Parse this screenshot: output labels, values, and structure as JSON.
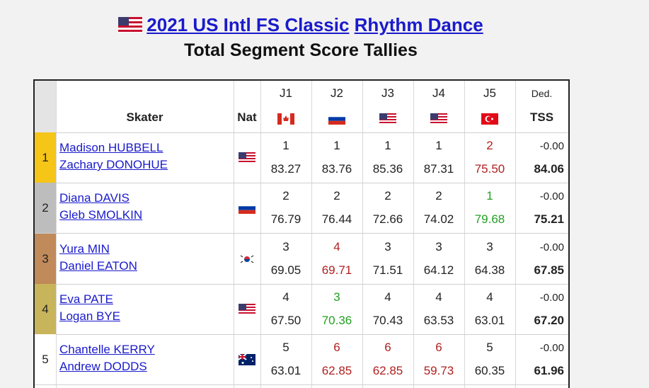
{
  "header": {
    "event": "2021 US Intl FS Classic",
    "segment": "Rhythm Dance",
    "subtitle": "Total Segment Score Tallies"
  },
  "table": {
    "columns": {
      "skater": "Skater",
      "nat": "Nat",
      "judges": [
        "J1",
        "J2",
        "J3",
        "J4",
        "J5"
      ],
      "ded": "Ded.",
      "tss": "TSS"
    },
    "rows": [
      {
        "rank": 1,
        "skaters": [
          "Madison HUBBELL",
          "Zachary DONOHUE"
        ],
        "judges": [
          {
            "rank": 1,
            "score": "83.27"
          },
          {
            "rank": 1,
            "score": "83.76"
          },
          {
            "rank": 1,
            "score": "85.36"
          },
          {
            "rank": 1,
            "score": "87.31"
          },
          {
            "rank": 2,
            "score": "75.50",
            "color": "#b02020"
          }
        ],
        "ded": "-0.00",
        "tss": "84.06"
      },
      {
        "rank": 2,
        "skaters": [
          "Diana DAVIS",
          "Gleb SMOLKIN"
        ],
        "judges": [
          {
            "rank": 2,
            "score": "76.79"
          },
          {
            "rank": 2,
            "score": "76.44"
          },
          {
            "rank": 2,
            "score": "72.66"
          },
          {
            "rank": 2,
            "score": "74.02"
          },
          {
            "rank": 1,
            "score": "79.68",
            "color": "#22a022"
          }
        ],
        "ded": "-0.00",
        "tss": "75.21"
      },
      {
        "rank": 3,
        "skaters": [
          "Yura MIN",
          "Daniel EATON"
        ],
        "judges": [
          {
            "rank": 3,
            "score": "69.05"
          },
          {
            "rank": 4,
            "score": "69.71",
            "color": "#b02020"
          },
          {
            "rank": 3,
            "score": "71.51"
          },
          {
            "rank": 3,
            "score": "64.12"
          },
          {
            "rank": 3,
            "score": "64.38"
          }
        ],
        "ded": "-0.00",
        "tss": "67.85"
      },
      {
        "rank": 4,
        "skaters": [
          "Eva PATE",
          "Logan BYE"
        ],
        "judges": [
          {
            "rank": 4,
            "score": "67.50"
          },
          {
            "rank": 3,
            "score": "70.36",
            "color": "#22a022"
          },
          {
            "rank": 4,
            "score": "70.43"
          },
          {
            "rank": 4,
            "score": "63.53"
          },
          {
            "rank": 4,
            "score": "63.01"
          }
        ],
        "ded": "-0.00",
        "tss": "67.20"
      },
      {
        "rank": 5,
        "skaters": [
          "Chantelle KERRY",
          "Andrew DODDS"
        ],
        "judges": [
          {
            "rank": 5,
            "score": "63.01"
          },
          {
            "rank": 6,
            "score": "62.85",
            "color": "#b02020"
          },
          {
            "rank": 6,
            "score": "62.85",
            "color": "#b02020"
          },
          {
            "rank": 6,
            "score": "59.73",
            "color": "#b02020"
          },
          {
            "rank": 5,
            "score": "60.35"
          }
        ],
        "ded": "-0.00",
        "tss": "61.96"
      }
    ]
  }
}
